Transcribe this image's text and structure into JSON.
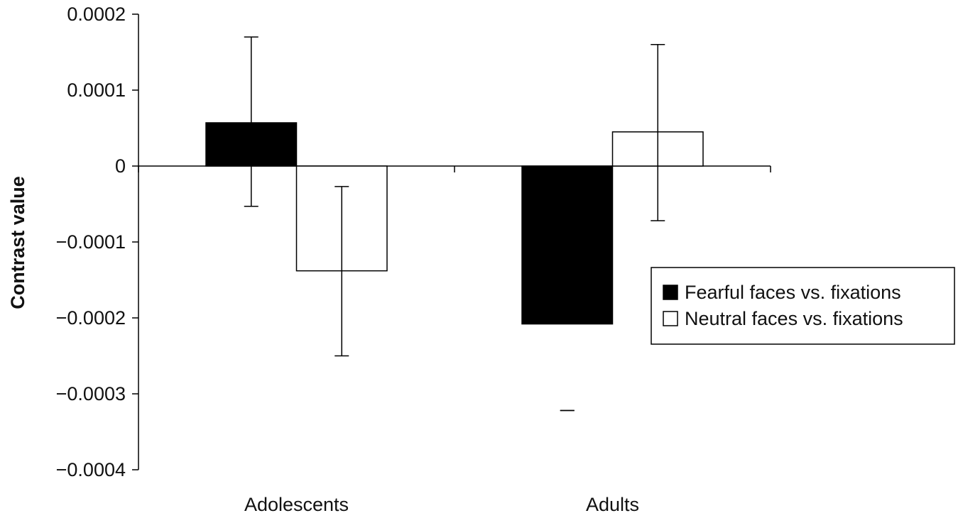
{
  "chart_data": {
    "type": "bar",
    "title": "",
    "xlabel": "",
    "ylabel": "Contrast value",
    "categories": [
      "Adolescents",
      "Adults"
    ],
    "ylim": [
      -0.0004,
      0.0002
    ],
    "yticks": [
      0.0002,
      0.0001,
      0,
      -0.0001,
      -0.0002,
      -0.0003,
      -0.0004
    ],
    "ytick_labels": [
      "0.0002",
      "0.0001",
      "0",
      "−0.0001",
      "−0.0002",
      "−0.0003",
      "−0.0004"
    ],
    "grid": false,
    "legend_position": "right",
    "series": [
      {
        "name": "Fearful faces vs. fixations",
        "color": "#000000",
        "values": [
          5.7e-05,
          -0.000208
        ],
        "error_high": [
          0.00017,
          -0.000322
        ],
        "error_low": [
          -5.3e-05,
          -0.000322
        ]
      },
      {
        "name": "Neutral faces vs. fixations",
        "color": "#ffffff",
        "values": [
          -0.000138,
          4.5e-05
        ],
        "error_high": [
          -2.7e-05,
          0.00016
        ],
        "error_low": [
          -0.00025,
          -7.2e-05
        ]
      }
    ]
  }
}
